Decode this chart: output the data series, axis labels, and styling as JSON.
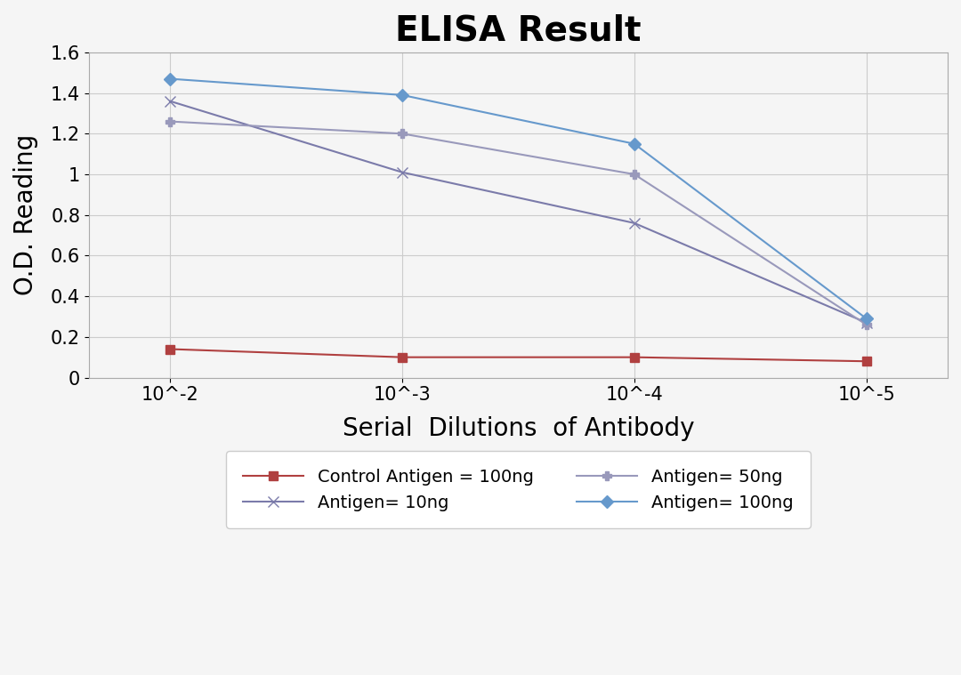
{
  "title": "ELISA Result",
  "xlabel": "Serial  Dilutions  of Antibody",
  "ylabel": "O.D. Reading",
  "x_values": [
    1,
    2,
    3,
    4
  ],
  "x_tick_labels": [
    "10^-2",
    "10^-3",
    "10^-4",
    "10^-5"
  ],
  "series": [
    {
      "label": "Control Antigen = 100ng",
      "color": "#b04040",
      "marker": "s",
      "markersize": 7,
      "values": [
        0.14,
        0.1,
        0.1,
        0.08
      ],
      "linestyle": "-",
      "linewidth": 1.5
    },
    {
      "label": "Antigen= 10ng",
      "color": "#7b7baa",
      "marker": "x",
      "markersize": 9,
      "values": [
        1.36,
        1.01,
        0.76,
        0.27
      ],
      "linestyle": "-",
      "linewidth": 1.5
    },
    {
      "label": "Antigen= 50ng",
      "color": "#9999bb",
      "marker": "P",
      "markersize": 7,
      "values": [
        1.26,
        1.2,
        1.0,
        0.26
      ],
      "linestyle": "-",
      "linewidth": 1.5
    },
    {
      "label": "Antigen= 100ng",
      "color": "#6699cc",
      "marker": "D",
      "markersize": 7,
      "values": [
        1.47,
        1.39,
        1.15,
        0.29
      ],
      "linestyle": "-",
      "linewidth": 1.5
    }
  ],
  "ylim": [
    0,
    1.6
  ],
  "yticks": [
    0,
    0.2,
    0.4,
    0.6,
    0.8,
    1.0,
    1.2,
    1.4,
    1.6
  ],
  "title_fontsize": 28,
  "axis_label_fontsize": 20,
  "tick_fontsize": 15,
  "legend_fontsize": 14,
  "background_color": "#f5f5f5",
  "grid_color": "#cccccc",
  "legend_order": [
    0,
    1,
    2,
    3
  ]
}
